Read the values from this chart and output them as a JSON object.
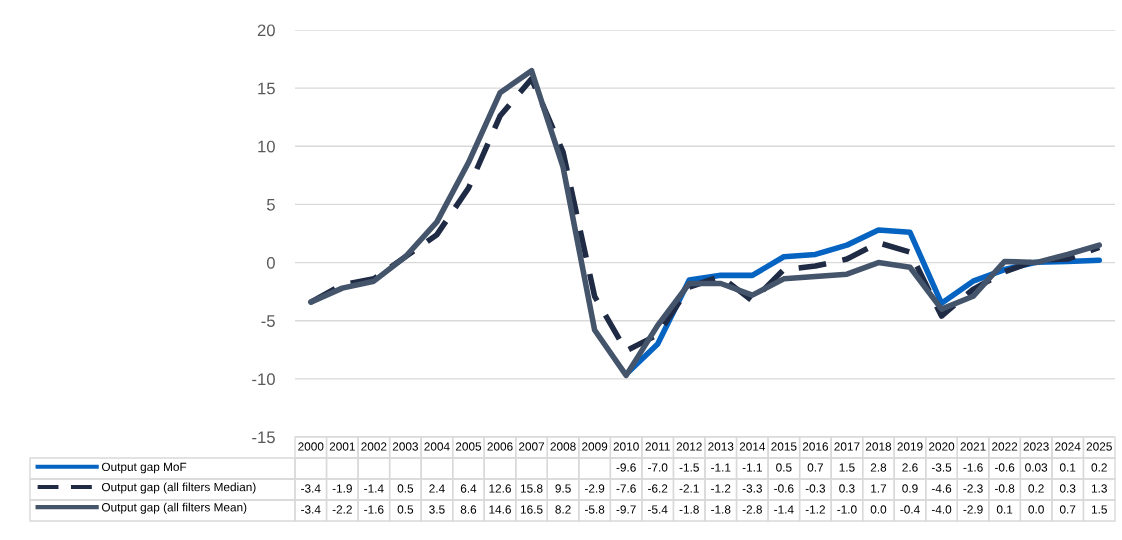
{
  "chart_data": {
    "type": "line",
    "categories": [
      "2000",
      "2001",
      "2002",
      "2003",
      "2004",
      "2005",
      "2006",
      "2007",
      "2008",
      "2009",
      "2010",
      "2011",
      "2012",
      "2013",
      "2014",
      "2015",
      "2016",
      "2017",
      "2018",
      "2019",
      "2020",
      "2021",
      "2022",
      "2023",
      "2024",
      "2025"
    ],
    "series": [
      {
        "name": "Output gap MoF",
        "color": "#0563c1",
        "line_style": "solid",
        "values": [
          null,
          null,
          null,
          null,
          null,
          null,
          null,
          null,
          null,
          null,
          -9.6,
          -7.0,
          -1.5,
          -1.1,
          -1.1,
          0.5,
          0.7,
          1.5,
          2.8,
          2.6,
          -3.5,
          -1.6,
          -0.6,
          0.03,
          0.1,
          0.2
        ],
        "value_labels": [
          null,
          null,
          null,
          null,
          null,
          null,
          null,
          null,
          null,
          null,
          "-9.6",
          "-7.0",
          "-1.5",
          "-1.1",
          "-1.1",
          "0.5",
          "0.7",
          "1.5",
          "2.8",
          "2.6",
          "-3.5",
          "-1.6",
          "-0.6",
          "0.03",
          "0.1",
          "0.2"
        ]
      },
      {
        "name": "Output gap (all filters Median)",
        "color": "#1f2a44",
        "line_style": "dashed",
        "values": [
          -3.4,
          -1.9,
          -1.4,
          0.5,
          2.4,
          6.4,
          12.6,
          15.8,
          9.5,
          -2.9,
          -7.6,
          -6.2,
          -2.1,
          -1.2,
          -3.3,
          -0.6,
          -0.3,
          0.3,
          1.7,
          0.9,
          -4.6,
          -2.3,
          -0.8,
          0.2,
          0.3,
          1.3
        ],
        "value_labels": [
          "-3.4",
          "-1.9",
          "-1.4",
          "0.5",
          "2.4",
          "6.4",
          "12.6",
          "15.8",
          "9.5",
          "-2.9",
          "-7.6",
          "-6.2",
          "-2.1",
          "-1.2",
          "-3.3",
          "-0.6",
          "-0.3",
          "0.3",
          "1.7",
          "0.9",
          "-4.6",
          "-2.3",
          "-0.8",
          "0.2",
          "0.3",
          "1.3"
        ]
      },
      {
        "name": "Output gap (all filters Mean)",
        "color": "#44546a",
        "line_style": "solid",
        "values": [
          -3.4,
          -2.2,
          -1.6,
          0.5,
          3.5,
          8.6,
          14.6,
          16.5,
          8.2,
          -5.8,
          -9.7,
          -5.4,
          -1.8,
          -1.8,
          -2.8,
          -1.4,
          -1.2,
          -1.0,
          0.0,
          -0.4,
          -4.0,
          -2.9,
          0.1,
          0.0,
          0.7,
          1.5
        ],
        "value_labels": [
          "-3.4",
          "-2.2",
          "-1.6",
          "0.5",
          "3.5",
          "8.6",
          "14.6",
          "16.5",
          "8.2",
          "-5.8",
          "-9.7",
          "-5.4",
          "-1.8",
          "-1.8",
          "-2.8",
          "-1.4",
          "-1.2",
          "-1.0",
          "0.0",
          "-0.4",
          "-4.0",
          "-2.9",
          "0.1",
          "0.0",
          "0.7",
          "1.5"
        ]
      }
    ],
    "ylim": [
      -15,
      20
    ],
    "yticks": [
      -15,
      -10,
      -5,
      0,
      5,
      10,
      15,
      20
    ],
    "grid": "y",
    "legend": "bottom",
    "marker": "none"
  }
}
